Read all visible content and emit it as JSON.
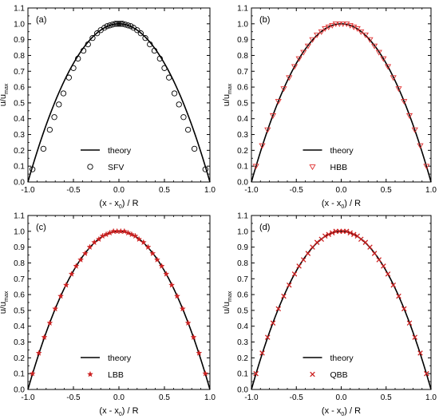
{
  "chart_data": [
    {
      "type": "line",
      "panel_label": "(a)",
      "xlabel": "(x - x0) / R",
      "ylabel": "u/umax",
      "xlim": [
        -1.0,
        1.0
      ],
      "ylim": [
        0.0,
        1.1
      ],
      "xticks": [
        "-1.0",
        "-0.5",
        "0.0",
        "0.5",
        "1.0"
      ],
      "yticks": [
        "0.0",
        "0.1",
        "0.2",
        "0.3",
        "0.4",
        "0.5",
        "0.6",
        "0.7",
        "0.8",
        "0.9",
        "1.0",
        "1.1"
      ],
      "grid": false,
      "legend_position": "bottom-center",
      "theory": {
        "name": "theory",
        "formula": "1 - x^2",
        "color": "#000000"
      },
      "series": [
        {
          "name": "SFV",
          "marker": "circle",
          "color": "#000000",
          "x": [
            -0.95,
            -0.83,
            -0.76,
            -0.71,
            -0.66,
            -0.61,
            -0.55,
            -0.5,
            -0.45,
            -0.39,
            -0.34,
            -0.29,
            -0.24,
            -0.2,
            -0.16,
            -0.13,
            -0.1,
            -0.07,
            -0.04,
            -0.02,
            0.0,
            0.02,
            0.04,
            0.07,
            0.1,
            0.13,
            0.16,
            0.2,
            0.24,
            0.29,
            0.34,
            0.39,
            0.45,
            0.5,
            0.55,
            0.61,
            0.66,
            0.71,
            0.76,
            0.83,
            0.95
          ],
          "y": [
            0.08,
            0.21,
            0.33,
            0.41,
            0.49,
            0.56,
            0.66,
            0.72,
            0.78,
            0.83,
            0.87,
            0.91,
            0.94,
            0.96,
            0.975,
            0.985,
            0.99,
            0.995,
            1.0,
            1.0,
            1.0,
            1.0,
            1.0,
            0.995,
            0.99,
            0.985,
            0.975,
            0.96,
            0.94,
            0.91,
            0.87,
            0.83,
            0.78,
            0.72,
            0.66,
            0.56,
            0.49,
            0.41,
            0.33,
            0.21,
            0.08
          ]
        }
      ]
    },
    {
      "type": "line",
      "panel_label": "(b)",
      "xlabel": "(x - x0) / R",
      "ylabel": "u/umax",
      "xlim": [
        -1.0,
        1.0
      ],
      "ylim": [
        0.0,
        1.1
      ],
      "xticks": [
        "-1.0",
        "-0.5",
        "0.0",
        "0.5",
        "1.0"
      ],
      "yticks": [
        "0.0",
        "0.1",
        "0.2",
        "0.3",
        "0.4",
        "0.5",
        "0.6",
        "0.7",
        "0.8",
        "0.9",
        "1.0",
        "1.1"
      ],
      "grid": false,
      "legend_position": "bottom-center",
      "theory": {
        "name": "theory",
        "formula": "1 - x^2",
        "color": "#000000"
      },
      "series": [
        {
          "name": "HBB",
          "marker": "triangle-down",
          "color": "#e03030",
          "x": [
            -0.95,
            -0.88,
            -0.82,
            -0.76,
            -0.7,
            -0.64,
            -0.58,
            -0.52,
            -0.47,
            -0.42,
            -0.37,
            -0.32,
            -0.27,
            -0.22,
            -0.18,
            -0.14,
            -0.1,
            -0.06,
            -0.02,
            0.02,
            0.06,
            0.1,
            0.14,
            0.18,
            0.22,
            0.27,
            0.32,
            0.37,
            0.42,
            0.47,
            0.52,
            0.58,
            0.64,
            0.7,
            0.76,
            0.82,
            0.88,
            0.95
          ],
          "y": [
            0.1,
            0.23,
            0.33,
            0.42,
            0.51,
            0.59,
            0.66,
            0.73,
            0.78,
            0.82,
            0.86,
            0.9,
            0.93,
            0.95,
            0.97,
            0.98,
            0.99,
            1.0,
            1.0,
            1.0,
            1.0,
            0.99,
            0.98,
            0.97,
            0.95,
            0.93,
            0.9,
            0.86,
            0.82,
            0.78,
            0.73,
            0.66,
            0.59,
            0.51,
            0.42,
            0.33,
            0.23,
            0.1
          ]
        }
      ]
    },
    {
      "type": "line",
      "panel_label": "(c)",
      "xlabel": "(x - x0) / R",
      "ylabel": "u/umax",
      "xlim": [
        -1.0,
        1.0
      ],
      "ylim": [
        0.0,
        1.1
      ],
      "xticks": [
        "-1.0",
        "-0.5",
        "0.0",
        "0.5",
        "1.0"
      ],
      "yticks": [
        "0.0",
        "0.1",
        "0.2",
        "0.3",
        "0.4",
        "0.5",
        "0.6",
        "0.7",
        "0.8",
        "0.9",
        "1.0",
        "1.1"
      ],
      "grid": false,
      "legend_position": "bottom-center",
      "theory": {
        "name": "theory",
        "formula": "1 - x^2",
        "color": "#000000"
      },
      "series": [
        {
          "name": "LBB",
          "marker": "star",
          "color": "#cc2020",
          "x": [
            -0.95,
            -0.88,
            -0.82,
            -0.76,
            -0.7,
            -0.64,
            -0.58,
            -0.52,
            -0.47,
            -0.42,
            -0.37,
            -0.32,
            -0.27,
            -0.22,
            -0.18,
            -0.14,
            -0.1,
            -0.06,
            -0.02,
            0.02,
            0.06,
            0.1,
            0.14,
            0.18,
            0.22,
            0.27,
            0.32,
            0.37,
            0.42,
            0.47,
            0.52,
            0.58,
            0.64,
            0.7,
            0.76,
            0.82,
            0.88,
            0.95
          ],
          "y": [
            0.1,
            0.23,
            0.33,
            0.42,
            0.51,
            0.59,
            0.66,
            0.73,
            0.78,
            0.82,
            0.86,
            0.9,
            0.93,
            0.95,
            0.97,
            0.98,
            0.99,
            1.0,
            1.0,
            1.0,
            1.0,
            0.99,
            0.98,
            0.97,
            0.95,
            0.93,
            0.9,
            0.86,
            0.82,
            0.78,
            0.73,
            0.66,
            0.59,
            0.51,
            0.42,
            0.33,
            0.23,
            0.1
          ]
        }
      ]
    },
    {
      "type": "line",
      "panel_label": "(d)",
      "xlabel": "(x - x0) / R",
      "ylabel": "u/umax",
      "xlim": [
        -1.0,
        1.0
      ],
      "ylim": [
        0.0,
        1.1
      ],
      "xticks": [
        "-1.0",
        "-0.5",
        "0.0",
        "0.5",
        "1.0"
      ],
      "yticks": [
        "0.0",
        "0.1",
        "0.2",
        "0.3",
        "0.4",
        "0.5",
        "0.6",
        "0.7",
        "0.8",
        "0.9",
        "1.0",
        "1.1"
      ],
      "grid": false,
      "legend_position": "bottom-center",
      "theory": {
        "name": "theory",
        "formula": "1 - x^2",
        "color": "#000000"
      },
      "series": [
        {
          "name": "QBB",
          "marker": "x",
          "color": "#cc2020",
          "x": [
            -0.95,
            -0.88,
            -0.82,
            -0.76,
            -0.7,
            -0.64,
            -0.58,
            -0.52,
            -0.47,
            -0.42,
            -0.37,
            -0.32,
            -0.27,
            -0.22,
            -0.18,
            -0.14,
            -0.1,
            -0.06,
            -0.02,
            0.02,
            0.06,
            0.1,
            0.14,
            0.18,
            0.22,
            0.27,
            0.32,
            0.37,
            0.42,
            0.47,
            0.52,
            0.58,
            0.64,
            0.7,
            0.76,
            0.82,
            0.88,
            0.95
          ],
          "y": [
            0.1,
            0.23,
            0.33,
            0.42,
            0.51,
            0.59,
            0.66,
            0.73,
            0.78,
            0.82,
            0.86,
            0.9,
            0.93,
            0.95,
            0.97,
            0.98,
            0.99,
            1.0,
            1.0,
            1.0,
            1.0,
            0.99,
            0.98,
            0.97,
            0.95,
            0.93,
            0.9,
            0.86,
            0.82,
            0.78,
            0.73,
            0.66,
            0.59,
            0.51,
            0.42,
            0.33,
            0.23,
            0.1
          ]
        }
      ]
    }
  ]
}
